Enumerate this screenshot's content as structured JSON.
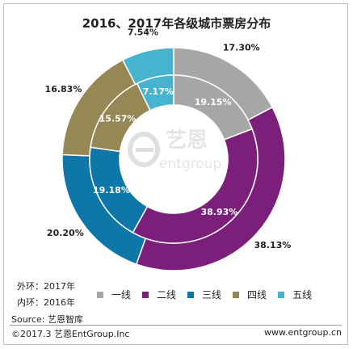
{
  "chart_data": {
    "type": "pie",
    "title": "2016、2017年各级城市票房分布",
    "categories": [
      "一线",
      "二线",
      "三线",
      "四线",
      "五线"
    ],
    "colors": [
      "#a6a6a6",
      "#7b1f7b",
      "#0f76a8",
      "#958855",
      "#48b3cf"
    ],
    "series": [
      {
        "name": "2017年",
        "ring": "outer",
        "values": [
          17.3,
          38.13,
          20.2,
          16.83,
          7.54
        ],
        "labels": [
          "17.30%",
          "38.13%",
          "20.20%",
          "16.83%",
          "7.54%"
        ]
      },
      {
        "name": "2016年",
        "ring": "inner",
        "values": [
          19.15,
          38.93,
          19.18,
          15.57,
          7.17
        ],
        "labels": [
          "19.15%",
          "38.93%",
          "19.18%",
          "15.57%",
          "7.17%"
        ]
      }
    ],
    "legend_position": "bottom"
  },
  "notes": {
    "outer_label": "外环：2017年",
    "inner_label": "内环：2016年"
  },
  "source": "Source: 艺恩智库",
  "footer": {
    "copyright": "©2017.3 艺恩EntGroup.Inc",
    "website": "www.entgroup.cn"
  },
  "watermark": {
    "text_cn": "艺恩",
    "text_en": "entgroup"
  }
}
